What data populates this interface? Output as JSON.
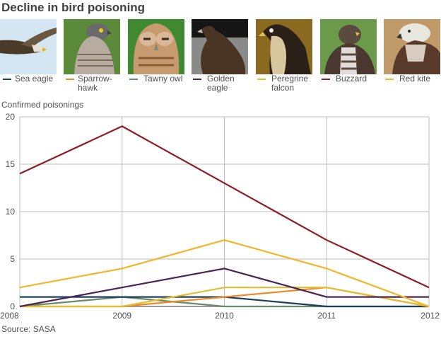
{
  "title": "Decline in bird poisoning",
  "source": "Source: SASA",
  "legend": [
    {
      "label": "Sea eagle",
      "color": "#1d3f5e",
      "photo": "sea-eagle-photo"
    },
    {
      "label": "Sparrow-\nhawk",
      "color": "#f0892a",
      "photo": "sparrowhawk-photo"
    },
    {
      "label": "Tawny owl",
      "color": "#6b8a6a",
      "photo": "tawny-owl-photo"
    },
    {
      "label": "Golden\neagle",
      "color": "#4b2457",
      "photo": "golden-eagle-photo"
    },
    {
      "label": "Peregrine\nfalcon",
      "color": "#e0c030",
      "photo": "peregrine-falcon-photo"
    },
    {
      "label": "Buzzard",
      "color": "#8f1d24",
      "photo": "buzzard-photo"
    },
    {
      "label": "Red kite",
      "color": "#f5b427",
      "photo": "red-kite-photo"
    }
  ],
  "chart_data": {
    "type": "line",
    "title": "Decline in bird poisoning",
    "xlabel": "",
    "ylabel": "Confirmed poisonings",
    "x": [
      "2008",
      "2009",
      "2010",
      "2011",
      "2012"
    ],
    "ylim": [
      0,
      20
    ],
    "yticks": [
      0,
      5,
      10,
      15,
      20
    ],
    "grid": true,
    "legend_position": "top",
    "series": [
      {
        "name": "Buzzard",
        "color": "#8f1d24",
        "values": [
          14,
          19,
          13,
          7,
          2
        ]
      },
      {
        "name": "Red kite",
        "color": "#f5b427",
        "values": [
          2,
          4,
          7,
          4,
          0
        ]
      },
      {
        "name": "Golden eagle",
        "color": "#4b2457",
        "values": [
          0,
          2,
          4,
          1,
          1
        ]
      },
      {
        "name": "Peregrine falcon",
        "color": "#e0c030",
        "values": [
          0,
          0,
          2,
          2,
          0
        ]
      },
      {
        "name": "Sparrowhawk",
        "color": "#f0892a",
        "values": [
          0,
          0,
          1,
          2,
          0
        ]
      },
      {
        "name": "Sea eagle",
        "color": "#1d3f5e",
        "values": [
          1,
          1,
          1,
          0,
          0
        ]
      },
      {
        "name": "Tawny owl",
        "color": "#6b8a6a",
        "values": [
          0,
          1,
          0,
          0,
          0
        ]
      }
    ],
    "annotations": [
      "Source: SASA"
    ]
  }
}
